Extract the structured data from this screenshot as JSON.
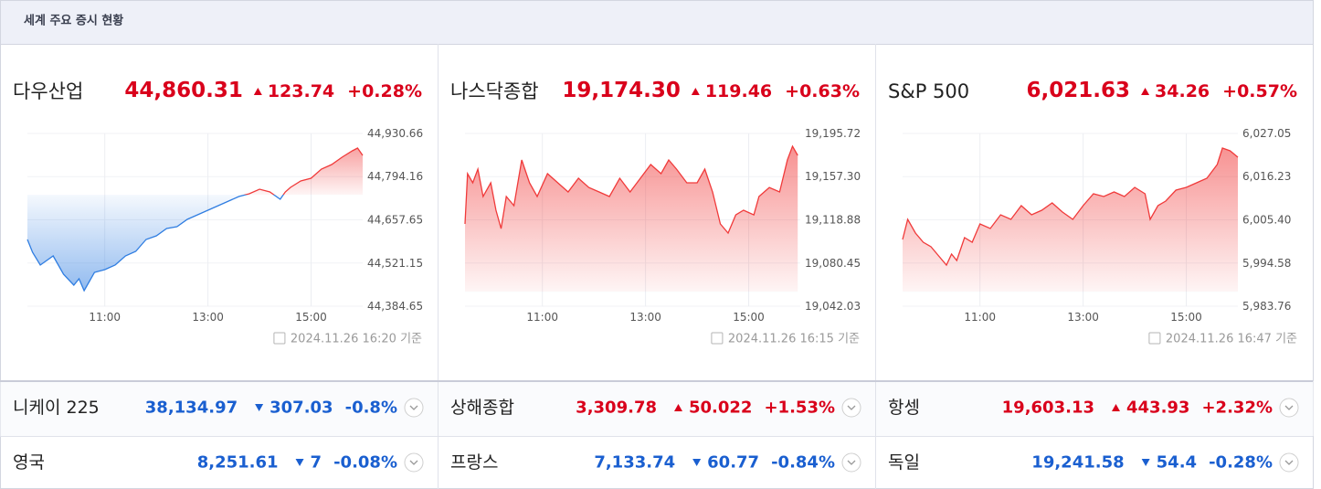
{
  "header": {
    "title": "세계 주요 증시 현황"
  },
  "colors": {
    "up": "#d9001b",
    "down": "#1a5fd0"
  },
  "indices": [
    {
      "name": "다우산업",
      "price": {
        "value": 44860.31,
        "label": "44,860.31"
      },
      "change": 123.74,
      "change_pct": {
        "value": 0.28,
        "label": "+0.28%"
      },
      "timestamp": "2024.11.26 16:20 기준",
      "chart_data": {
        "type": "line",
        "colors": {
          "up": "#f03a3a",
          "down": "#2f7de1"
        },
        "x": [
          9.5,
          9.6,
          9.75,
          10,
          10.2,
          10.4,
          10.5,
          10.6,
          10.8,
          11,
          11.2,
          11.4,
          11.6,
          11.8,
          12,
          12.2,
          12.4,
          12.6,
          12.8,
          13,
          13.2,
          13.4,
          13.6,
          13.8,
          14,
          14.2,
          14.4,
          14.5,
          14.6,
          14.8,
          15,
          15.2,
          15.4,
          15.6,
          15.8,
          15.9,
          16
        ],
        "values": [
          44595.6,
          44555.1,
          44514.7,
          44543.6,
          44485.8,
          44451.1,
          44471.3,
          44433.8,
          44491.6,
          44500.2,
          44514.7,
          44543.6,
          44558.0,
          44595.6,
          44607.1,
          44630.2,
          44636.0,
          44659.1,
          44673.6,
          44688.0,
          44702.5,
          44716.9,
          44731.4,
          44740.0,
          44754.5,
          44745.8,
          44722.7,
          44745.8,
          44760.2,
          44780.5,
          44789.1,
          44818.0,
          44832.5,
          44855.6,
          44875.8,
          44884.5,
          44861.4
        ],
        "xlim": [
          9.5,
          16
        ],
        "xticks": [
          {
            "value": 11,
            "label": "11:00"
          },
          {
            "value": 13,
            "label": "13:00"
          },
          {
            "value": 15,
            "label": "15:00"
          }
        ],
        "ylim": [
          44384.65,
          44930.66
        ],
        "yticks": [
          {
            "value": 44384.65,
            "label": "44,384.65"
          },
          {
            "value": 44521.15,
            "label": "44,521.15"
          },
          {
            "value": 44657.65,
            "label": "44,657.65"
          },
          {
            "value": 44794.16,
            "label": "44,794.16"
          },
          {
            "value": 44930.66,
            "label": "44,930.66"
          }
        ],
        "grid": true
      }
    },
    {
      "name": "나스닥종합",
      "price": {
        "value": 19174.3,
        "label": "19,174.30"
      },
      "change": 119.46,
      "change_pct": {
        "value": 0.63,
        "label": "+0.63%"
      },
      "timestamp": "2024.11.26 16:15 기준",
      "chart_data": {
        "type": "line",
        "colors": {
          "up": "#f03a3a",
          "down": "#2f7de1"
        },
        "x": [
          9.5,
          9.55,
          9.65,
          9.75,
          9.85,
          10.0,
          10.1,
          10.2,
          10.3,
          10.45,
          10.6,
          10.75,
          10.9,
          11.1,
          11.3,
          11.5,
          11.7,
          11.9,
          12.1,
          12.3,
          12.5,
          12.7,
          12.9,
          13.1,
          13.3,
          13.45,
          13.6,
          13.8,
          14.0,
          14.15,
          14.3,
          14.45,
          14.6,
          14.75,
          14.9,
          15.1,
          15.2,
          15.4,
          15.6,
          15.75,
          15.85,
          15.95
        ],
        "values": [
          19115.2,
          19159.9,
          19151.8,
          19164.0,
          19139.6,
          19151.8,
          19127.4,
          19111.1,
          19139.6,
          19131.5,
          19172.1,
          19151.8,
          19139.6,
          19159.9,
          19151.8,
          19143.7,
          19155.9,
          19147.7,
          19143.7,
          19139.6,
          19155.9,
          19143.7,
          19155.9,
          19168.1,
          19159.9,
          19172.1,
          19164.0,
          19151.8,
          19151.8,
          19164.0,
          19143.7,
          19115.2,
          19107.1,
          19123.3,
          19127.4,
          19123.3,
          19139.6,
          19147.7,
          19143.7,
          19172.1,
          19184.3,
          19176.2
        ],
        "xlim": [
          9.5,
          16
        ],
        "xticks": [
          {
            "value": 11,
            "label": "11:00"
          },
          {
            "value": 13,
            "label": "13:00"
          },
          {
            "value": 15,
            "label": "15:00"
          }
        ],
        "ylim": [
          19042.03,
          19195.72
        ],
        "yticks": [
          {
            "value": 19042.03,
            "label": "19,042.03"
          },
          {
            "value": 19080.45,
            "label": "19,080.45"
          },
          {
            "value": 19118.88,
            "label": "19,118.88"
          },
          {
            "value": 19157.3,
            "label": "19,157.30"
          },
          {
            "value": 19195.72,
            "label": "19,195.72"
          }
        ],
        "grid": true
      }
    },
    {
      "name": "S&P 500",
      "price": {
        "value": 6021.63,
        "label": "6,021.63"
      },
      "change": 34.26,
      "change_pct": {
        "value": 0.57,
        "label": "+0.57%"
      },
      "timestamp": "2024.11.26 16:47 기준",
      "chart_data": {
        "type": "line",
        "colors": {
          "up": "#f03a3a",
          "down": "#2f7de1"
        },
        "x": [
          9.5,
          9.6,
          9.75,
          9.9,
          10.05,
          10.2,
          10.35,
          10.45,
          10.55,
          10.7,
          10.85,
          11.0,
          11.2,
          11.4,
          11.6,
          11.8,
          12.0,
          12.2,
          12.4,
          12.6,
          12.8,
          13.0,
          13.2,
          13.4,
          13.6,
          13.8,
          14.0,
          14.2,
          14.3,
          14.45,
          14.6,
          14.8,
          15.0,
          15.2,
          15.4,
          15.6,
          15.7,
          15.85,
          16.0
        ],
        "values": [
          6000.48,
          6005.52,
          6002.09,
          5999.8,
          5998.65,
          5996.36,
          5994.07,
          5996.82,
          5995.22,
          6000.94,
          5999.8,
          6004.38,
          6003.23,
          6006.67,
          6005.52,
          6008.96,
          6006.67,
          6007.81,
          6009.65,
          6007.36,
          6005.52,
          6008.96,
          6011.94,
          6011.25,
          6012.39,
          6011.25,
          6013.54,
          6011.94,
          6005.52,
          6008.96,
          6010.1,
          6012.85,
          6013.54,
          6014.68,
          6015.83,
          6019.26,
          6023.39,
          6022.7,
          6021.1
        ],
        "xlim": [
          9.5,
          16
        ],
        "xticks": [
          {
            "value": 11,
            "label": "11:00"
          },
          {
            "value": 13,
            "label": "13:00"
          },
          {
            "value": 15,
            "label": "15:00"
          }
        ],
        "ylim": [
          5983.76,
          6027.05
        ],
        "yticks": [
          {
            "value": 5983.76,
            "label": "5,983.76"
          },
          {
            "value": 5994.58,
            "label": "5,994.58"
          },
          {
            "value": 6005.4,
            "label": "6,005.40"
          },
          {
            "value": 6016.23,
            "label": "6,016.23"
          },
          {
            "value": 6027.05,
            "label": "6,027.05"
          }
        ],
        "grid": true
      }
    }
  ],
  "others": [
    {
      "name": "니케이 225",
      "price": "38,134.97",
      "change": "307.03",
      "change_pct": "-0.8%",
      "direction": "down"
    },
    {
      "name": "상해종합",
      "price": "3,309.78",
      "change": "50.022",
      "change_pct": "+1.53%",
      "direction": "up"
    },
    {
      "name": "항셍",
      "price": "19,603.13",
      "change": "443.93",
      "change_pct": "+2.32%",
      "direction": "up"
    },
    {
      "name": "영국",
      "price": "8,251.61",
      "change": "7",
      "change_pct": "-0.08%",
      "direction": "down"
    },
    {
      "name": "프랑스",
      "price": "7,133.74",
      "change": "60.77",
      "change_pct": "-0.84%",
      "direction": "down"
    },
    {
      "name": "독일",
      "price": "19,241.58",
      "change": "54.4",
      "change_pct": "-0.28%",
      "direction": "down"
    }
  ]
}
